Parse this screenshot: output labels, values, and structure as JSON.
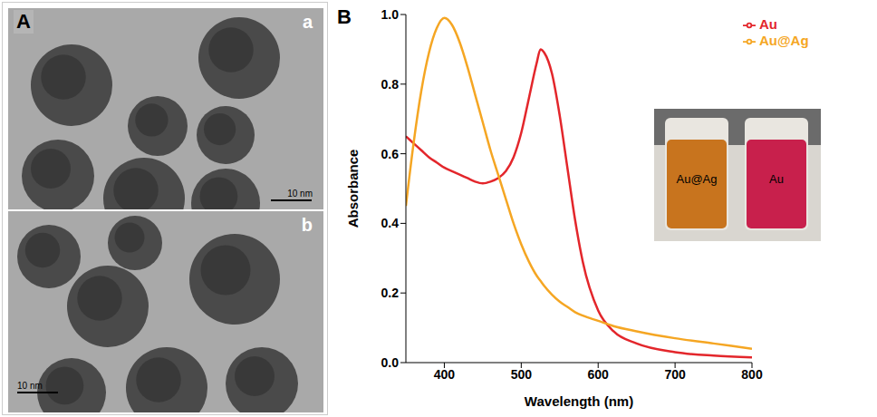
{
  "chart_data": {
    "type": "line",
    "title": "B",
    "x_label": "Wavelength (nm)",
    "y_label": "Absorbance",
    "x": [
      350,
      360,
      370,
      380,
      390,
      400,
      410,
      420,
      430,
      440,
      450,
      460,
      470,
      480,
      490,
      500,
      510,
      520,
      525,
      530,
      540,
      550,
      560,
      570,
      580,
      600,
      620,
      650,
      700,
      750,
      800
    ],
    "series": [
      {
        "name": "Au",
        "color": "#e3262b",
        "values": [
          0.65,
          0.63,
          0.61,
          0.59,
          0.575,
          0.56,
          0.55,
          0.54,
          0.53,
          0.52,
          0.515,
          0.52,
          0.53,
          0.55,
          0.59,
          0.66,
          0.76,
          0.86,
          0.9,
          0.89,
          0.83,
          0.71,
          0.56,
          0.41,
          0.29,
          0.15,
          0.09,
          0.055,
          0.03,
          0.02,
          0.015
        ]
      },
      {
        "name": "Au@Ag",
        "color": "#f5a623",
        "values": [
          0.45,
          0.63,
          0.78,
          0.89,
          0.96,
          0.99,
          0.97,
          0.92,
          0.85,
          0.77,
          0.69,
          0.61,
          0.54,
          0.47,
          0.4,
          0.34,
          0.29,
          0.25,
          0.235,
          0.22,
          0.195,
          0.175,
          0.16,
          0.145,
          0.135,
          0.12,
          0.105,
          0.09,
          0.07,
          0.055,
          0.04
        ]
      }
    ],
    "xlim": [
      350,
      800
    ],
    "xticks": [
      400,
      500,
      600,
      700,
      800
    ],
    "ylim": [
      0,
      1.0
    ],
    "yticks": [
      {
        "value": 0,
        "label": "0.0"
      },
      {
        "value": 0.2,
        "label": "0.2"
      },
      {
        "value": 0.4,
        "label": "0.4"
      },
      {
        "value": 0.6,
        "label": "0.6"
      },
      {
        "value": 0.8,
        "label": "0.8"
      },
      {
        "value": 1.0,
        "label": "1.0"
      }
    ],
    "legend": "upper right",
    "grid": false
  },
  "panel_a": {
    "title": "A",
    "images": [
      {
        "label": "a",
        "scale_bar": "10 nm"
      },
      {
        "label": "b",
        "scale_bar": "10 nm"
      }
    ]
  },
  "inset_labels": [
    "Au@Ag",
    "Au"
  ]
}
